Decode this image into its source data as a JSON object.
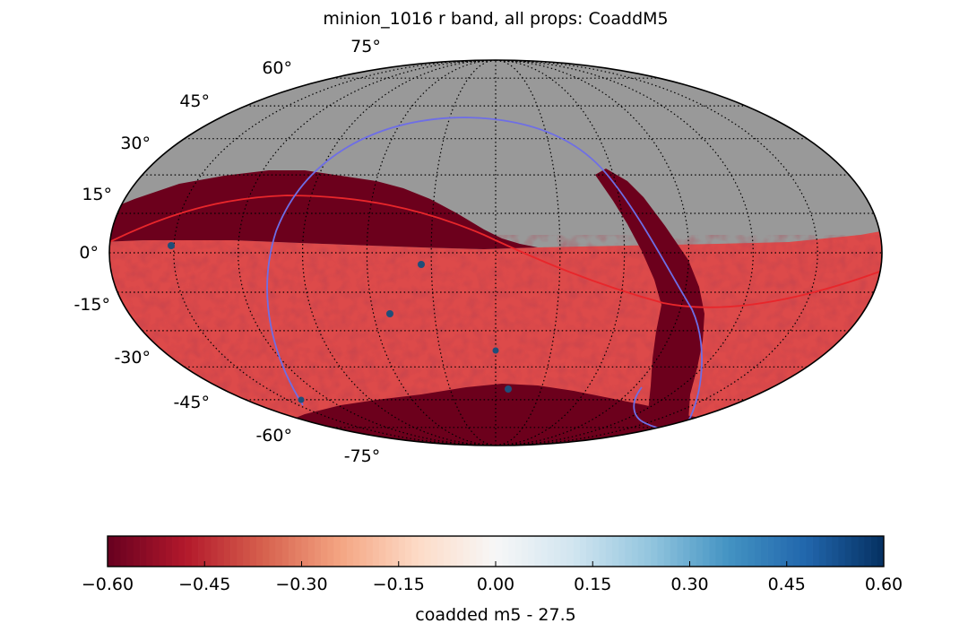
{
  "chart_data": {
    "type": "heatmap",
    "projection": "mollweide",
    "title": "minion_1016 r band, all props: CoaddM5",
    "latitude_labels": [
      "75°",
      "60°",
      "45°",
      "30°",
      "15°",
      "0°",
      "-15°",
      "-30°",
      "-45°",
      "-60°",
      "-75°"
    ],
    "latitude_values": [
      75,
      60,
      45,
      30,
      15,
      0,
      -15,
      -30,
      -45,
      -60,
      -75
    ],
    "longitude_grid_step_deg": 30,
    "colorbar": {
      "label": "coadded m5 - 27.5",
      "range": [
        -0.6,
        0.6
      ],
      "ticks": [
        -0.6,
        -0.45,
        -0.3,
        -0.15,
        0.0,
        0.15,
        0.3,
        0.45,
        0.6
      ],
      "tick_labels": [
        "−0.60",
        "−0.45",
        "−0.30",
        "−0.15",
        "0.00",
        "0.15",
        "0.30",
        "0.45",
        "0.60"
      ],
      "colormap": "RdBu"
    },
    "no_data_color": "#999999",
    "main_survey_color": "#dd4a4a",
    "deep_region_color": "#6c001c",
    "overlays": {
      "ecliptic_color": "#e8262b",
      "galactic_plane_color": "#6e6ee6"
    },
    "deep_drilling_fields": 6
  }
}
